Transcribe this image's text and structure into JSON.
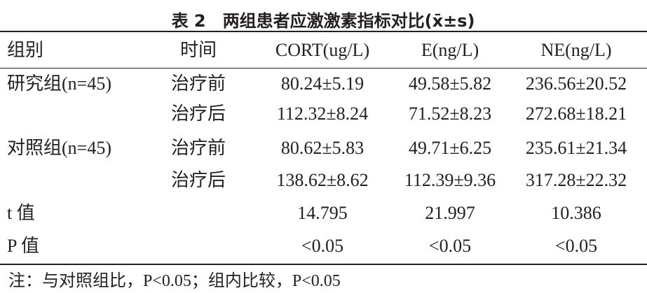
{
  "title": "表 2　两组患者应激激素指标对比(x̄±s)",
  "table": {
    "header": [
      "组别",
      "时间",
      "CORT(ug/L)",
      "E(ng/L)",
      "NE(ng/L)"
    ],
    "rows": [
      [
        "研究组(n=45)",
        "治疗前",
        "80.24±5.19",
        "49.58±5.82",
        "236.56±20.52"
      ],
      [
        null,
        "治疗后",
        "112.32±8.24",
        "71.52±8.23",
        "272.68±18.21"
      ],
      [
        "对照组(n=45)",
        "治疗前",
        "80.62±5.83",
        "49.71±6.25",
        "235.61±21.34"
      ],
      [
        null,
        "治疗后",
        "138.62±8.62",
        "112.39±9.36",
        "317.28±22.32"
      ],
      [
        "t 值",
        null,
        "14.795",
        "21.997",
        "10.386"
      ],
      [
        "P 值",
        null,
        "<0.05",
        "<0.05",
        "<0.05"
      ]
    ]
  },
  "note": "注：与对照组比，P<0.05；组内比较，P<0.05"
}
